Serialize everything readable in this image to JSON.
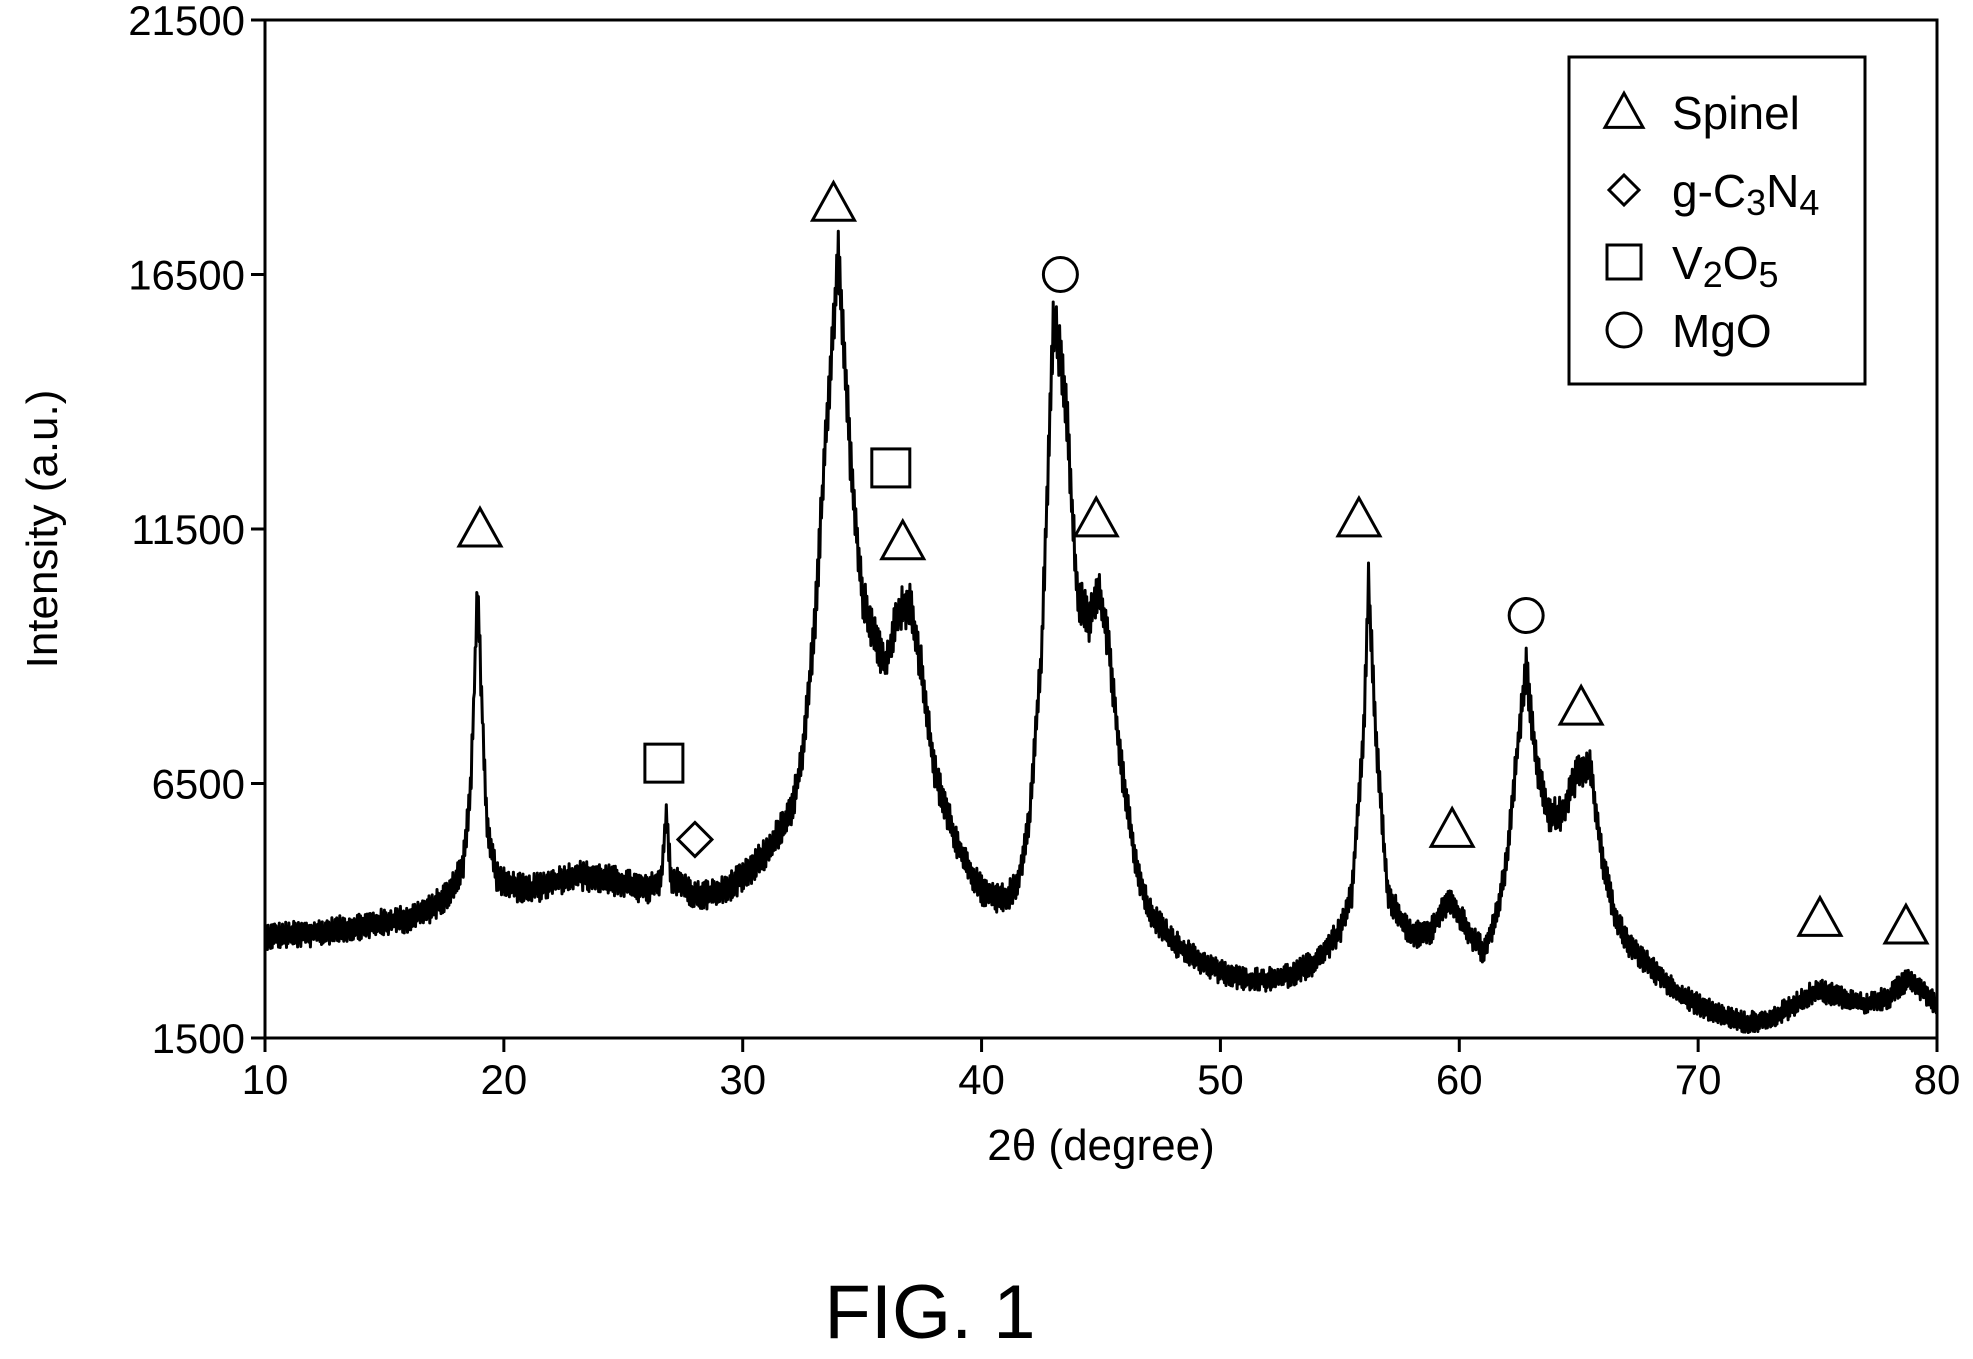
{
  "chart_data": {
    "type": "line",
    "xlabel": "2θ (degree)",
    "ylabel": "Intensity (a.u.)",
    "xlim": [
      10,
      80
    ],
    "ylim": [
      1500,
      21500
    ],
    "x_ticks": [
      10,
      20,
      30,
      40,
      50,
      60,
      70,
      80
    ],
    "x_tick_labels": [
      "10",
      "20",
      "30",
      "40",
      "50",
      "60",
      "70",
      "80"
    ],
    "y_ticks": [
      1500,
      6500,
      11500,
      16500,
      21500
    ],
    "y_tick_labels": [
      "1500",
      "6500",
      "11500",
      "16500",
      "21500"
    ],
    "grid": false,
    "legend_position": "top-right",
    "legend": [
      {
        "marker": "triangle",
        "label": "Spinel"
      },
      {
        "marker": "diamond",
        "label": "g-C3N4",
        "base": "g-C",
        "sub1": "3",
        "mid": "N",
        "sub2": "4"
      },
      {
        "marker": "square",
        "label": "V2O5",
        "base": "V",
        "sub1": "2",
        "mid": "O",
        "sub2": "5"
      },
      {
        "marker": "circle",
        "label": "MgO"
      }
    ],
    "series": [
      {
        "points": [
          [
            10,
            3500
          ],
          [
            12,
            3550
          ],
          [
            14,
            3700
          ],
          [
            16,
            3850
          ],
          [
            17,
            4050
          ],
          [
            17.8,
            4400
          ],
          [
            18.3,
            4950
          ],
          [
            18.6,
            6300
          ],
          [
            18.75,
            8200
          ],
          [
            18.9,
            10450
          ],
          [
            19.05,
            8400
          ],
          [
            19.3,
            5600
          ],
          [
            19.7,
            4700
          ],
          [
            20,
            4550
          ],
          [
            21,
            4400
          ],
          [
            22,
            4550
          ],
          [
            23,
            4700
          ],
          [
            24,
            4650
          ],
          [
            25,
            4550
          ],
          [
            26,
            4400
          ],
          [
            26.6,
            4600
          ],
          [
            26.8,
            5950
          ],
          [
            27,
            4650
          ],
          [
            28,
            4300
          ],
          [
            29,
            4350
          ],
          [
            30,
            4650
          ],
          [
            31,
            5150
          ],
          [
            32,
            5900
          ],
          [
            32.5,
            7000
          ],
          [
            33,
            9500
          ],
          [
            33.5,
            13500
          ],
          [
            34,
            16900
          ],
          [
            34.5,
            13000
          ],
          [
            35,
            10200
          ],
          [
            35.5,
            9400
          ],
          [
            36,
            8800
          ],
          [
            36.5,
            9900
          ],
          [
            37,
            10000
          ],
          [
            37.5,
            8700
          ],
          [
            38,
            6800
          ],
          [
            38.5,
            6000
          ],
          [
            39,
            5300
          ],
          [
            39.5,
            4800
          ],
          [
            40,
            4400
          ],
          [
            40.5,
            4250
          ],
          [
            41,
            4250
          ],
          [
            41.5,
            4500
          ],
          [
            42,
            5800
          ],
          [
            42.5,
            9000
          ],
          [
            43,
            15500
          ],
          [
            43.3,
            15000
          ],
          [
            43.6,
            13500
          ],
          [
            44,
            10200
          ],
          [
            44.5,
            9700
          ],
          [
            44.9,
            10400
          ],
          [
            45.3,
            9300
          ],
          [
            45.8,
            7000
          ],
          [
            46.5,
            4800
          ],
          [
            47,
            4000
          ],
          [
            48,
            3400
          ],
          [
            49,
            3050
          ],
          [
            50,
            2800
          ],
          [
            51,
            2650
          ],
          [
            52,
            2650
          ],
          [
            53,
            2750
          ],
          [
            54,
            3000
          ],
          [
            55,
            3600
          ],
          [
            55.5,
            4300
          ],
          [
            56,
            7500
          ],
          [
            56.2,
            10450
          ],
          [
            56.5,
            7500
          ],
          [
            57,
            4300
          ],
          [
            58,
            3500
          ],
          [
            58.8,
            3600
          ],
          [
            59.5,
            4200
          ],
          [
            60,
            3900
          ],
          [
            60.5,
            3500
          ],
          [
            61,
            3200
          ],
          [
            61.5,
            3800
          ],
          [
            62,
            5000
          ],
          [
            62.5,
            7500
          ],
          [
            62.8,
            8800
          ],
          [
            63.2,
            7000
          ],
          [
            63.7,
            5900
          ],
          [
            64.3,
            5900
          ],
          [
            65,
            6800
          ],
          [
            65.5,
            6800
          ],
          [
            66,
            5000
          ],
          [
            66.5,
            3900
          ],
          [
            67,
            3400
          ],
          [
            68,
            2900
          ],
          [
            69,
            2450
          ],
          [
            70,
            2150
          ],
          [
            71,
            1950
          ],
          [
            72,
            1800
          ],
          [
            73,
            1850
          ],
          [
            74,
            2150
          ],
          [
            75,
            2450
          ],
          [
            76,
            2300
          ],
          [
            77,
            2150
          ],
          [
            78,
            2300
          ],
          [
            78.8,
            2700
          ],
          [
            79.5,
            2400
          ],
          [
            80,
            2150
          ]
        ]
      }
    ],
    "annotations": [
      {
        "marker": "triangle",
        "x": 19.0,
        "y": 11500
      },
      {
        "marker": "square",
        "x": 26.7,
        "y": 6900
      },
      {
        "marker": "diamond",
        "x": 28.0,
        "y": 5400
      },
      {
        "marker": "triangle",
        "x": 33.8,
        "y": 17900
      },
      {
        "marker": "square",
        "x": 36.2,
        "y": 12700
      },
      {
        "marker": "triangle",
        "x": 36.7,
        "y": 11250
      },
      {
        "marker": "circle",
        "x": 43.3,
        "y": 16500
      },
      {
        "marker": "triangle",
        "x": 44.8,
        "y": 11700
      },
      {
        "marker": "triangle",
        "x": 55.8,
        "y": 11700
      },
      {
        "marker": "triangle",
        "x": 59.7,
        "y": 5600
      },
      {
        "marker": "circle",
        "x": 62.8,
        "y": 9800
      },
      {
        "marker": "triangle",
        "x": 65.1,
        "y": 8000
      },
      {
        "marker": "triangle",
        "x": 75.1,
        "y": 3850
      },
      {
        "marker": "triangle",
        "x": 78.7,
        "y": 3700
      }
    ]
  },
  "caption": "FIG. 1"
}
